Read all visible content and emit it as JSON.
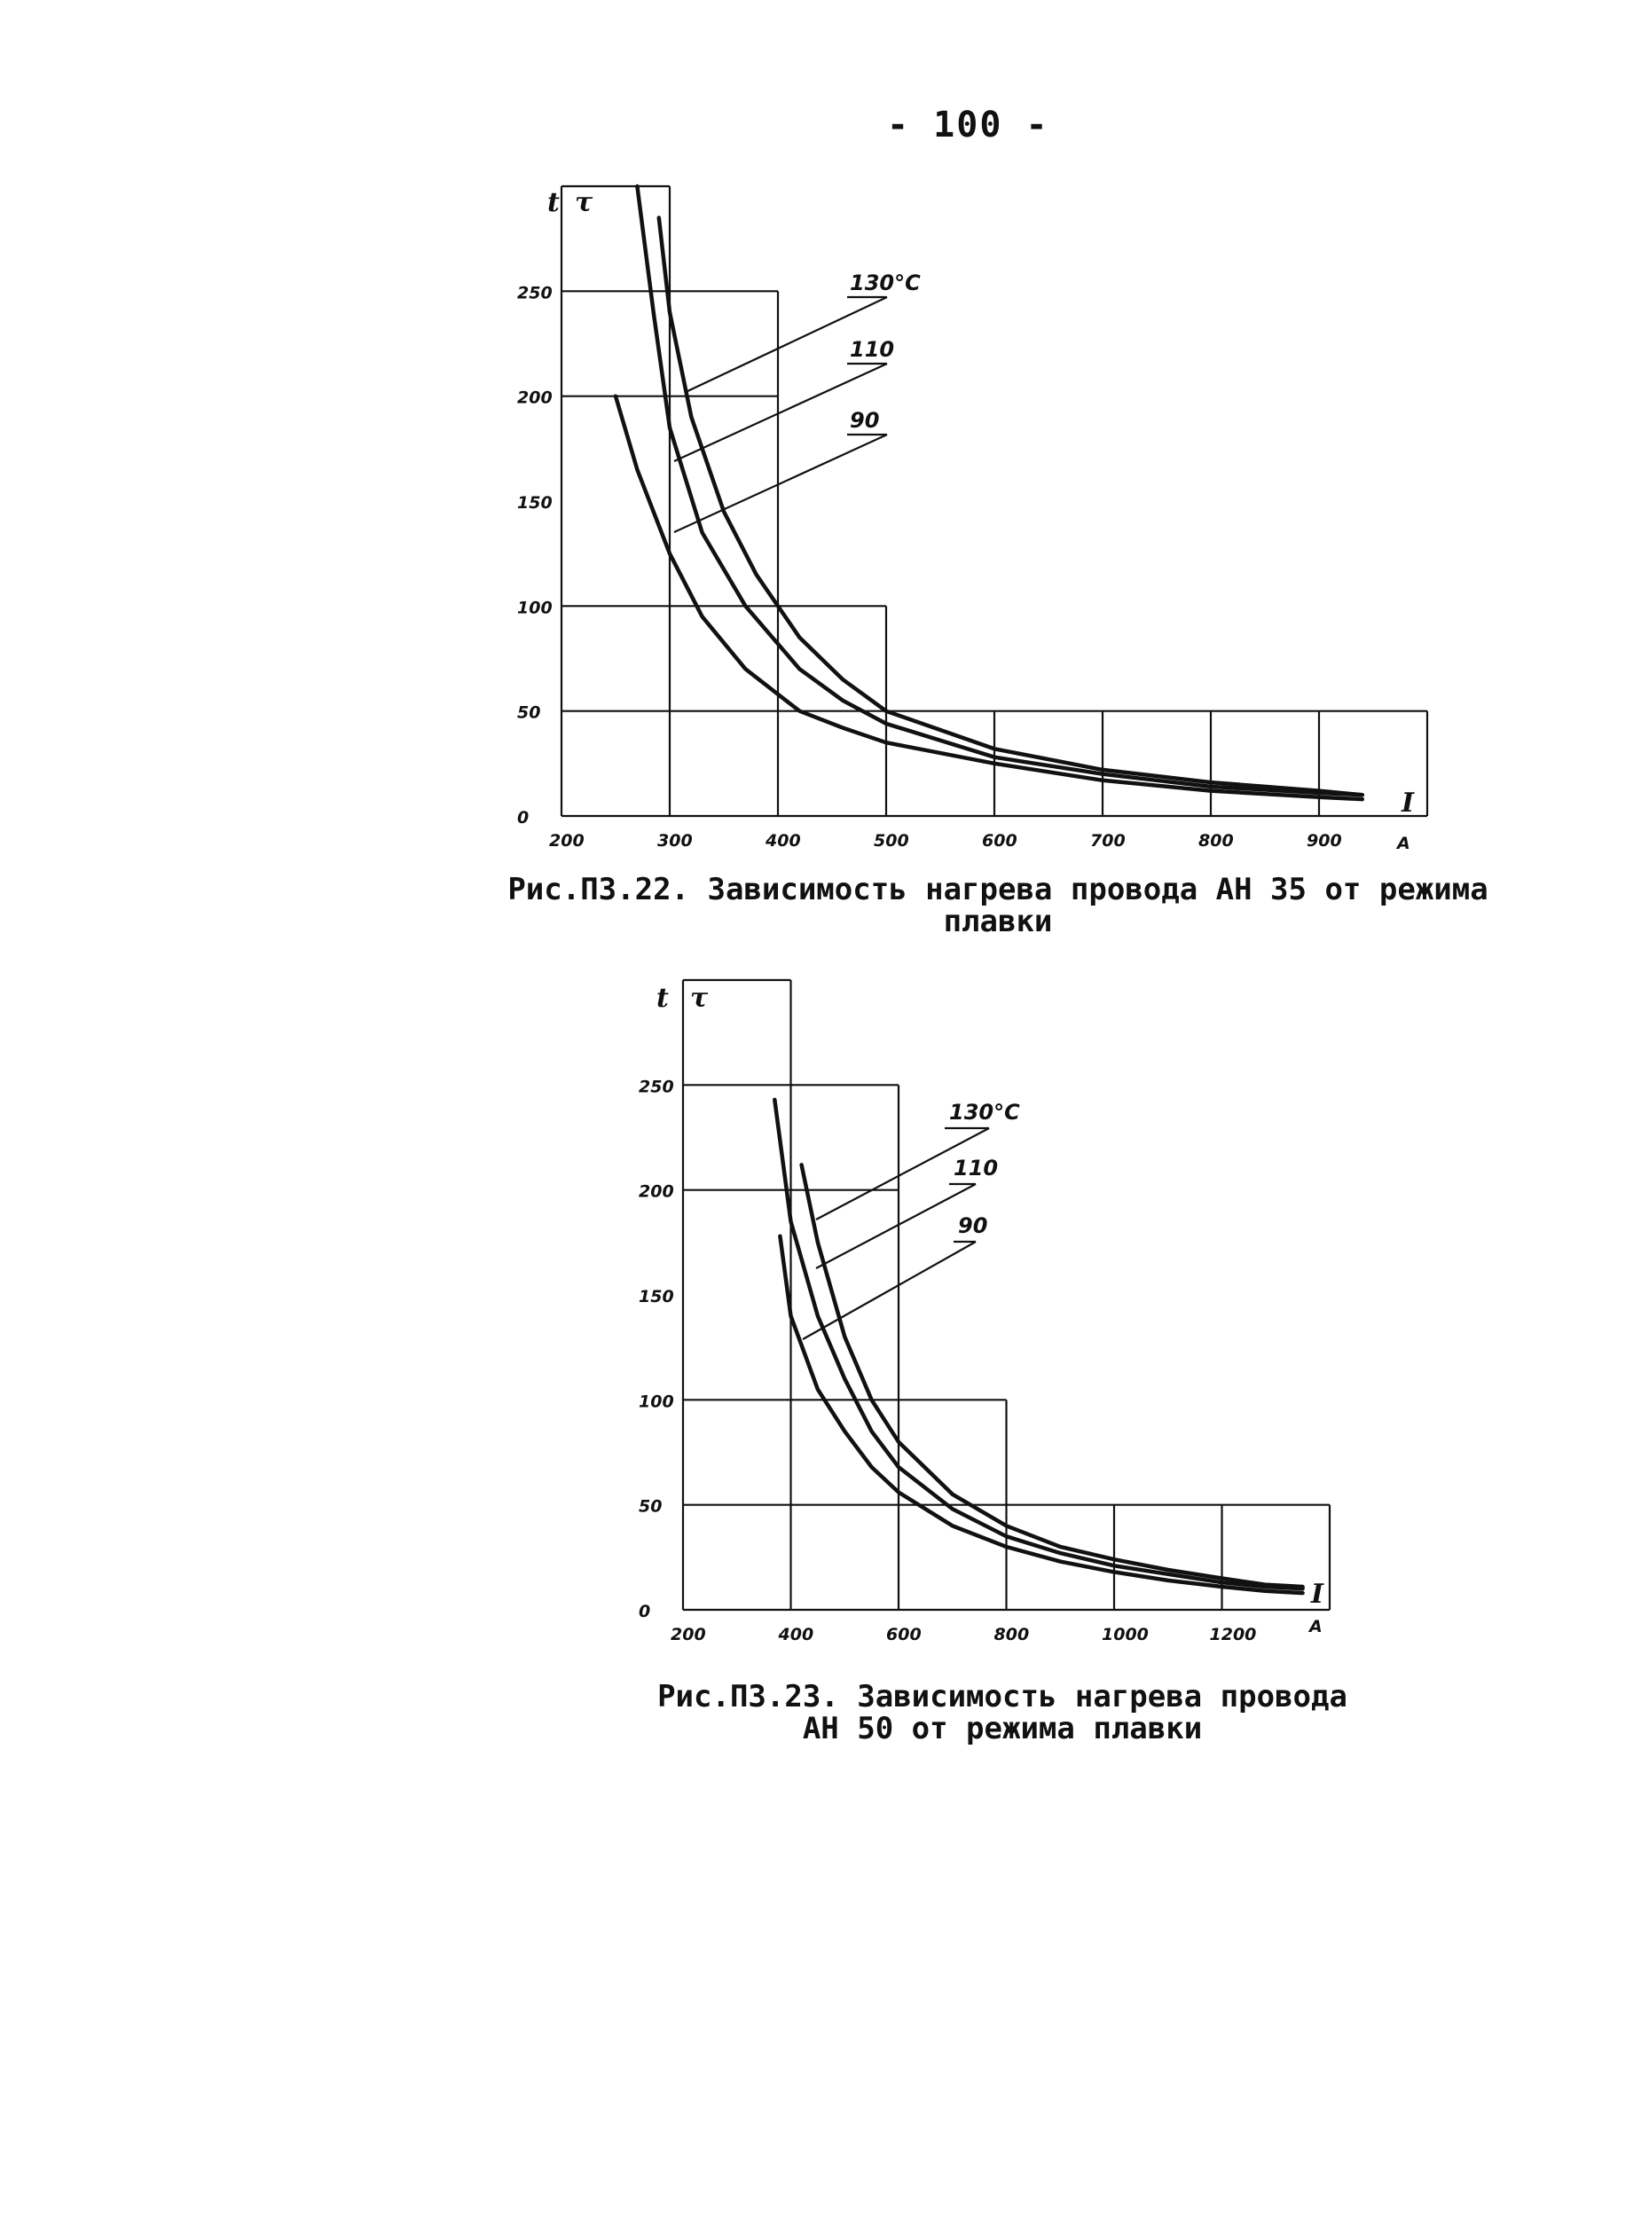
{
  "page": {
    "number": "- 100 -"
  },
  "chart_data": [
    {
      "type": "line",
      "caption": "Рис.П3.22. Зависимость нагрева провода АН 35 от режима плавки",
      "y_symbols": [
        "t",
        "τ"
      ],
      "x_symbol": "I",
      "x_unit": "A",
      "xlim": [
        200,
        1000
      ],
      "ylim": [
        0,
        300
      ],
      "x_ticks": [
        200,
        300,
        400,
        500,
        600,
        700,
        800,
        900
      ],
      "x_tick_labels": [
        "200",
        "300",
        "400",
        "500",
        "600",
        "700",
        "800",
        "900"
      ],
      "y_ticks": [
        0,
        50,
        100,
        150,
        200,
        250
      ],
      "y_tick_labels": [
        "0",
        "50",
        "100",
        "150",
        "200",
        "250"
      ],
      "grid": "stepped",
      "series": [
        {
          "name": "130°C",
          "x": [
            290,
            300,
            320,
            350,
            380,
            420,
            460,
            500,
            600,
            700,
            800,
            900,
            940
          ],
          "y": [
            285,
            240,
            190,
            145,
            115,
            85,
            65,
            50,
            32,
            22,
            16,
            12,
            10
          ]
        },
        {
          "name": "110",
          "x": [
            270,
            285,
            300,
            330,
            370,
            420,
            460,
            500,
            600,
            700,
            800,
            900,
            940
          ],
          "y": [
            300,
            240,
            185,
            135,
            100,
            70,
            55,
            44,
            28,
            20,
            14,
            11,
            10
          ]
        },
        {
          "name": "90",
          "x": [
            250,
            270,
            300,
            330,
            370,
            420,
            460,
            500,
            600,
            700,
            800,
            900,
            940
          ],
          "y": [
            200,
            165,
            125,
            95,
            70,
            50,
            42,
            35,
            25,
            17,
            12,
            9,
            8
          ]
        }
      ]
    },
    {
      "type": "line",
      "caption": "Рис.П3.23. Зависимость нагрева провода АН 50 от режима плавки",
      "y_symbols": [
        "t",
        "τ"
      ],
      "x_symbol": "I",
      "x_unit": "A",
      "xlim": [
        200,
        1400
      ],
      "ylim": [
        0,
        300
      ],
      "x_ticks": [
        200,
        400,
        600,
        800,
        1000,
        1200
      ],
      "x_tick_labels": [
        "200",
        "400",
        "600",
        "800",
        "1000",
        "1200"
      ],
      "y_ticks": [
        0,
        50,
        100,
        150,
        200,
        250
      ],
      "y_tick_labels": [
        "0",
        "50",
        "100",
        "150",
        "200",
        "250"
      ],
      "grid": "stepped",
      "series": [
        {
          "name": "130°C",
          "x": [
            420,
            450,
            500,
            550,
            600,
            700,
            800,
            900,
            1000,
            1100,
            1200,
            1280,
            1350
          ],
          "y": [
            212,
            175,
            130,
            100,
            80,
            55,
            40,
            30,
            24,
            19,
            15,
            12,
            11
          ]
        },
        {
          "name": "110",
          "x": [
            370,
            400,
            450,
            500,
            550,
            600,
            700,
            800,
            900,
            1000,
            1100,
            1200,
            1280,
            1350
          ],
          "y": [
            243,
            185,
            140,
            110,
            85,
            68,
            48,
            35,
            27,
            21,
            17,
            13,
            11,
            10
          ]
        },
        {
          "name": "90",
          "x": [
            380,
            400,
            450,
            500,
            550,
            600,
            700,
            800,
            900,
            1000,
            1100,
            1200,
            1280,
            1350
          ],
          "y": [
            178,
            140,
            105,
            85,
            68,
            56,
            40,
            30,
            23,
            18,
            14,
            11,
            9,
            8
          ]
        }
      ]
    }
  ]
}
